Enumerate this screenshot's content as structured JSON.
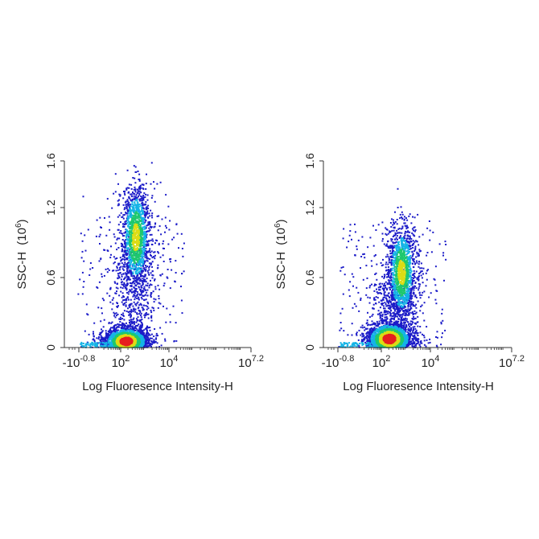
{
  "chart_data": [
    {
      "type": "scatter",
      "panel": "left",
      "xlabel": "Log Fluoresence Intensity-H",
      "ylabel": "SSC-H",
      "ylabel_exponent": "(10",
      "ylabel_sup": "6",
      "ylabel_close": ")",
      "x_scale": "biexponential",
      "xlim": [
        "-10^-0.8",
        "10^7.2"
      ],
      "ylim": [
        0,
        1.6
      ],
      "x_ticks": [
        {
          "base": "-10",
          "exp": "-0.8"
        },
        {
          "base": "10",
          "exp": "2"
        },
        {
          "base": "10",
          "exp": "4"
        },
        {
          "base": "10",
          "exp": "7.2"
        }
      ],
      "y_ticks": [
        "0",
        "0.6",
        "1.2",
        "1.6"
      ],
      "y_tick_values": [
        0,
        0.6,
        1.2,
        1.6
      ],
      "grid": false,
      "colormap": "density (blue → cyan → green → yellow → red)",
      "populations": [
        {
          "label": "",
          "x_center_log10": 2.6,
          "y_center": 0.95,
          "y_spread": 0.22,
          "density": "high"
        },
        {
          "label": "",
          "x_center_log10": 2.2,
          "y_center": 0.06,
          "y_spread": 0.06,
          "density": "very high"
        }
      ]
    },
    {
      "type": "scatter",
      "panel": "right",
      "xlabel": "Log Fluoresence Intensity-H",
      "ylabel": "SSC-H",
      "ylabel_exponent": "(10",
      "ylabel_sup": "6",
      "ylabel_close": ")",
      "x_scale": "biexponential",
      "xlim": [
        "-10^-0.8",
        "10^7.2"
      ],
      "ylim": [
        0,
        1.6
      ],
      "x_ticks": [
        {
          "base": "-10",
          "exp": "-0.8"
        },
        {
          "base": "10",
          "exp": "2"
        },
        {
          "base": "10",
          "exp": "4"
        },
        {
          "base": "10",
          "exp": "7.2"
        }
      ],
      "y_ticks": [
        "0",
        "0.6",
        "1.2",
        "1.6"
      ],
      "y_tick_values": [
        0,
        0.6,
        1.2,
        1.6
      ],
      "grid": false,
      "colormap": "density (blue → cyan → green → yellow → red)",
      "populations": [
        {
          "label": "",
          "x_center_log10": 2.8,
          "y_center": 0.65,
          "y_spread": 0.2,
          "density": "high"
        },
        {
          "label": "",
          "x_center_log10": 2.3,
          "y_center": 0.08,
          "y_spread": 0.07,
          "density": "very high"
        }
      ]
    }
  ],
  "colors": {
    "low": "#1c1cc8",
    "mid_low": "#14b4e6",
    "mid": "#1ec86e",
    "mid_high": "#dcdc14",
    "high": "#e61e1e",
    "axis": "#333333"
  }
}
